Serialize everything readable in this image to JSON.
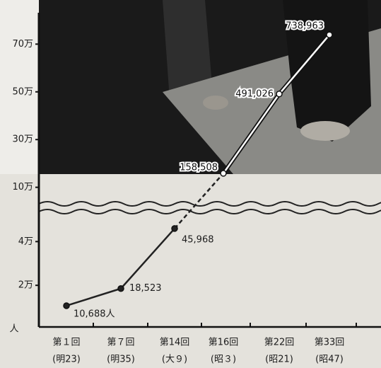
{
  "chart_data": {
    "type": "line",
    "y_label": "人",
    "categories": [
      "第１回",
      "第７回",
      "第14回",
      "第16回",
      "第22回",
      "第33回"
    ],
    "eras": [
      "(明23)",
      "(明35)",
      "(大９)",
      "(昭３)",
      "(昭21)",
      "(昭47)"
    ],
    "values": [
      10688,
      18523,
      45968,
      158508,
      491026,
      738963
    ],
    "value_labels": [
      "10,688人",
      "18,523",
      "45,968",
      "158,508",
      "491,026",
      "738,963"
    ],
    "ylim": [
      0,
      55000
    ],
    "yticks": [
      {
        "value": 20000,
        "label": "2万"
      },
      {
        "value": 40000,
        "label": "4万"
      }
    ],
    "upper_ylim": [
      10000,
      790000
    ],
    "upper_yticks": [
      {
        "value": 100000,
        "label": "10万"
      },
      {
        "value": 300000,
        "label": "30万"
      },
      {
        "value": 500000,
        "label": "50万"
      },
      {
        "value": 700000,
        "label": "70万"
      }
    ],
    "color": "#222222"
  }
}
